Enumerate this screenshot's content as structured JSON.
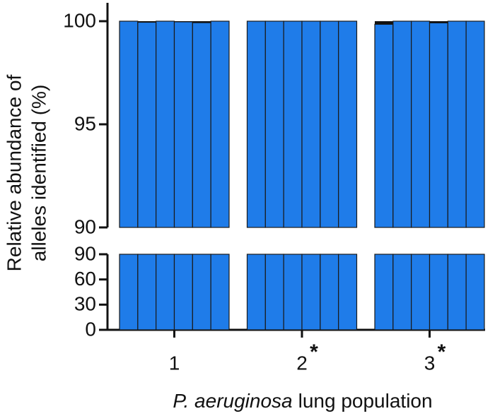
{
  "chart_data": {
    "type": "bar",
    "stacked": true,
    "broken_axis": true,
    "ylabel": [
      "Relative abundance of",
      "alleles identified (%)"
    ],
    "xlabel": {
      "italic": "P. aeruginosa",
      "plain": "lung population"
    },
    "categories": [
      "1",
      "2",
      "3"
    ],
    "category_marks": [
      null,
      "*",
      "*"
    ],
    "ylim": [
      0,
      90
    ],
    "yticks": [
      0,
      30,
      60,
      90
    ],
    "ylim_upper": [
      90,
      100
    ],
    "yticks_upper": [
      90,
      95,
      100
    ],
    "series": [
      {
        "color": "#1f7ce9",
        "values": [
          [
            100,
            99.95,
            100,
            99.97,
            99.93,
            100
          ],
          [
            100,
            100,
            100,
            100,
            100,
            100
          ],
          [
            99.85,
            100,
            100,
            99.92,
            100,
            100
          ]
        ]
      },
      {
        "color": "#111111",
        "values": [
          [
            0,
            0.05,
            0,
            0.03,
            0.07,
            0
          ],
          [
            0,
            0,
            0,
            0,
            0,
            0
          ],
          [
            0.15,
            0,
            0,
            0.08,
            0,
            0
          ]
        ]
      }
    ]
  }
}
